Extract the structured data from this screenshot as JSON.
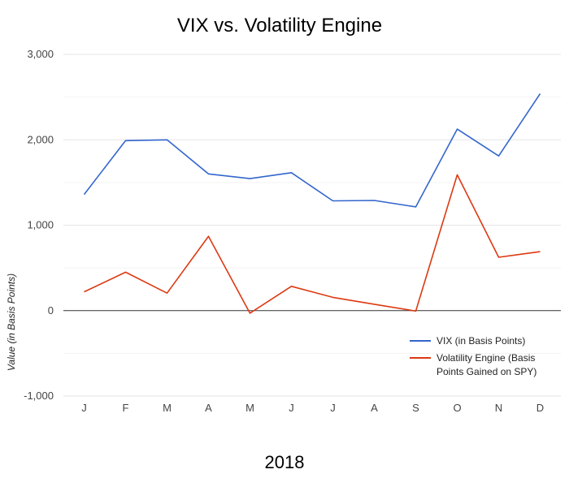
{
  "chart_data": {
    "type": "line",
    "title": "VIX vs. Volatility Engine",
    "xlabel": "2018",
    "ylabel": "Value (in Basis Points)",
    "categories": [
      "J",
      "F",
      "M",
      "A",
      "M",
      "J",
      "J",
      "A",
      "S",
      "O",
      "N",
      "D"
    ],
    "ylim": [
      -1000,
      3000
    ],
    "yticks": [
      -1000,
      0,
      1000,
      2000,
      3000
    ],
    "ytick_labels": [
      "-1,000",
      "0",
      "1,000",
      "2,000",
      "3,000"
    ],
    "grid": true,
    "legend_position": "bottom-right",
    "series": [
      {
        "name": "VIX (in Basis Points)",
        "legend_lines": [
          "VIX (in Basis Points)"
        ],
        "color": "#3366cc",
        "values": [
          1360,
          1990,
          2000,
          1600,
          1545,
          1615,
          1285,
          1290,
          1215,
          2125,
          1810,
          2540
        ]
      },
      {
        "name": "Volatility Engine (Basis Points Gained on SPY)",
        "legend_lines": [
          "Volatility Engine (Basis",
          "Points Gained on SPY)"
        ],
        "color": "#dc3912",
        "values": [
          220,
          450,
          205,
          870,
          -30,
          285,
          155,
          75,
          -5,
          1590,
          625,
          690
        ]
      }
    ]
  }
}
